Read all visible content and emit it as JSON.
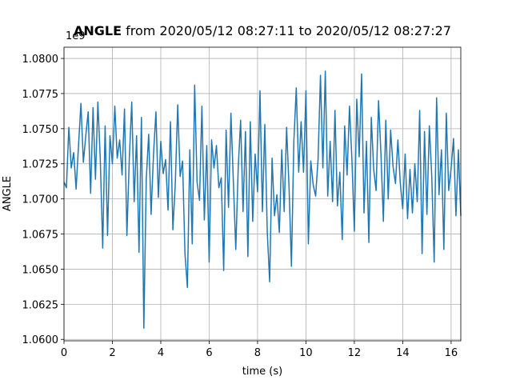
{
  "chart_data": {
    "type": "line",
    "title": "ANGLE",
    "subtitle": "from 2020/05/12 08:27:11 to 2020/05/12 08:27:27",
    "x_label": "time (s)",
    "y_label": "ANGLE",
    "y_offset_label": "1e9",
    "grid": true,
    "xlim": [
      0,
      16.4
    ],
    "ylim": [
      1.0599,
      1.0808
    ],
    "xticks": [
      0,
      2,
      4,
      6,
      8,
      10,
      12,
      14,
      16
    ],
    "yticks": [
      {
        "value": 1.06,
        "label": "1.0600"
      },
      {
        "value": 1.0625,
        "label": "1.0625"
      },
      {
        "value": 1.065,
        "label": "1.0650"
      },
      {
        "value": 1.0675,
        "label": "1.0675"
      },
      {
        "value": 1.07,
        "label": "1.0700"
      },
      {
        "value": 1.0725,
        "label": "1.0725"
      },
      {
        "value": 1.075,
        "label": "1.0750"
      },
      {
        "value": 1.0775,
        "label": "1.0775"
      },
      {
        "value": 1.08,
        "label": "1.0800"
      }
    ],
    "x": [
      0,
      0.1,
      0.2,
      0.3,
      0.4,
      0.5,
      0.6,
      0.7,
      0.8,
      0.9,
      1,
      1.1,
      1.2,
      1.3,
      1.4,
      1.5,
      1.6,
      1.7,
      1.8,
      1.9,
      2,
      2.1,
      2.2,
      2.3,
      2.4,
      2.5,
      2.6,
      2.7,
      2.8,
      2.9,
      3,
      3.1,
      3.2,
      3.3,
      3.4,
      3.5,
      3.6,
      3.7,
      3.8,
      3.9,
      4,
      4.1,
      4.2,
      4.3,
      4.4,
      4.5,
      4.6,
      4.7,
      4.8,
      4.9,
      5,
      5.1,
      5.2,
      5.3,
      5.4,
      5.5,
      5.6,
      5.7,
      5.8,
      5.9,
      6,
      6.1,
      6.2,
      6.3,
      6.4,
      6.5,
      6.6,
      6.7,
      6.8,
      6.9,
      7,
      7.1,
      7.2,
      7.3,
      7.4,
      7.5,
      7.6,
      7.7,
      7.8,
      7.9,
      8,
      8.1,
      8.2,
      8.3,
      8.4,
      8.5,
      8.6,
      8.7,
      8.8,
      8.9,
      9,
      9.1,
      9.2,
      9.3,
      9.4,
      9.5,
      9.6,
      9.7,
      9.8,
      9.9,
      10,
      10.1,
      10.2,
      10.3,
      10.4,
      10.5,
      10.6,
      10.7,
      10.8,
      10.9,
      11,
      11.1,
      11.2,
      11.3,
      11.4,
      11.5,
      11.6,
      11.7,
      11.8,
      11.9,
      12,
      12.1,
      12.2,
      12.3,
      12.4,
      12.5,
      12.6,
      12.7,
      12.8,
      12.9,
      13,
      13.1,
      13.2,
      13.3,
      13.4,
      13.5,
      13.6,
      13.7,
      13.8,
      13.9,
      14,
      14.1,
      14.2,
      14.3,
      14.4,
      14.5,
      14.6,
      14.7,
      14.8,
      14.9,
      15,
      15.1,
      15.2,
      15.3,
      15.4,
      15.5,
      15.6,
      15.7,
      15.8,
      15.9,
      16,
      16.1,
      16.2,
      16.3,
      16.4
    ],
    "series": [
      {
        "color": "#1f77b4",
        "values": [
          1.0712,
          1.0708,
          1.0751,
          1.0722,
          1.0733,
          1.0707,
          1.0738,
          1.0768,
          1.0726,
          1.0745,
          1.0762,
          1.0704,
          1.0765,
          1.0714,
          1.0769,
          1.0728,
          1.0665,
          1.0752,
          1.0674,
          1.0745,
          1.0725,
          1.0766,
          1.0729,
          1.0742,
          1.0717,
          1.0764,
          1.0674,
          1.0729,
          1.0769,
          1.0698,
          1.0745,
          1.0662,
          1.0758,
          1.0608,
          1.0714,
          1.0746,
          1.0689,
          1.0732,
          1.0762,
          1.0701,
          1.0741,
          1.0718,
          1.0728,
          1.0692,
          1.0755,
          1.0678,
          1.0711,
          1.0767,
          1.0716,
          1.0727,
          1.0661,
          1.0637,
          1.0735,
          1.0668,
          1.0781,
          1.0712,
          1.0699,
          1.0766,
          1.0685,
          1.0738,
          1.0655,
          1.0742,
          1.0722,
          1.0738,
          1.0708,
          1.0715,
          1.0649,
          1.0749,
          1.0694,
          1.0761,
          1.0712,
          1.0664,
          1.0722,
          1.0756,
          1.0691,
          1.0748,
          1.0659,
          1.0755,
          1.0684,
          1.0732,
          1.0705,
          1.0777,
          1.0691,
          1.0753,
          1.0677,
          1.0641,
          1.0729,
          1.0688,
          1.0703,
          1.0676,
          1.0735,
          1.0691,
          1.0751,
          1.0709,
          1.0652,
          1.0741,
          1.0779,
          1.0719,
          1.0755,
          1.0719,
          1.0777,
          1.0668,
          1.0727,
          1.071,
          1.0702,
          1.0728,
          1.0788,
          1.0722,
          1.0791,
          1.0702,
          1.0741,
          1.0698,
          1.0763,
          1.0695,
          1.0719,
          1.0671,
          1.0752,
          1.0717,
          1.0766,
          1.0728,
          1.0677,
          1.0771,
          1.073,
          1.0789,
          1.069,
          1.0741,
          1.0669,
          1.0758,
          1.0721,
          1.0706,
          1.077,
          1.0732,
          1.0684,
          1.0756,
          1.07,
          1.0749,
          1.0723,
          1.0711,
          1.0742,
          1.0711,
          1.0693,
          1.0732,
          1.0686,
          1.0721,
          1.069,
          1.0725,
          1.0698,
          1.0763,
          1.0661,
          1.0748,
          1.0689,
          1.0752,
          1.0716,
          1.0655,
          1.0772,
          1.0703,
          1.0735,
          1.0664,
          1.0761,
          1.0706,
          1.0722,
          1.0743,
          1.0688,
          1.0735,
          1.0688
        ]
      }
    ]
  }
}
